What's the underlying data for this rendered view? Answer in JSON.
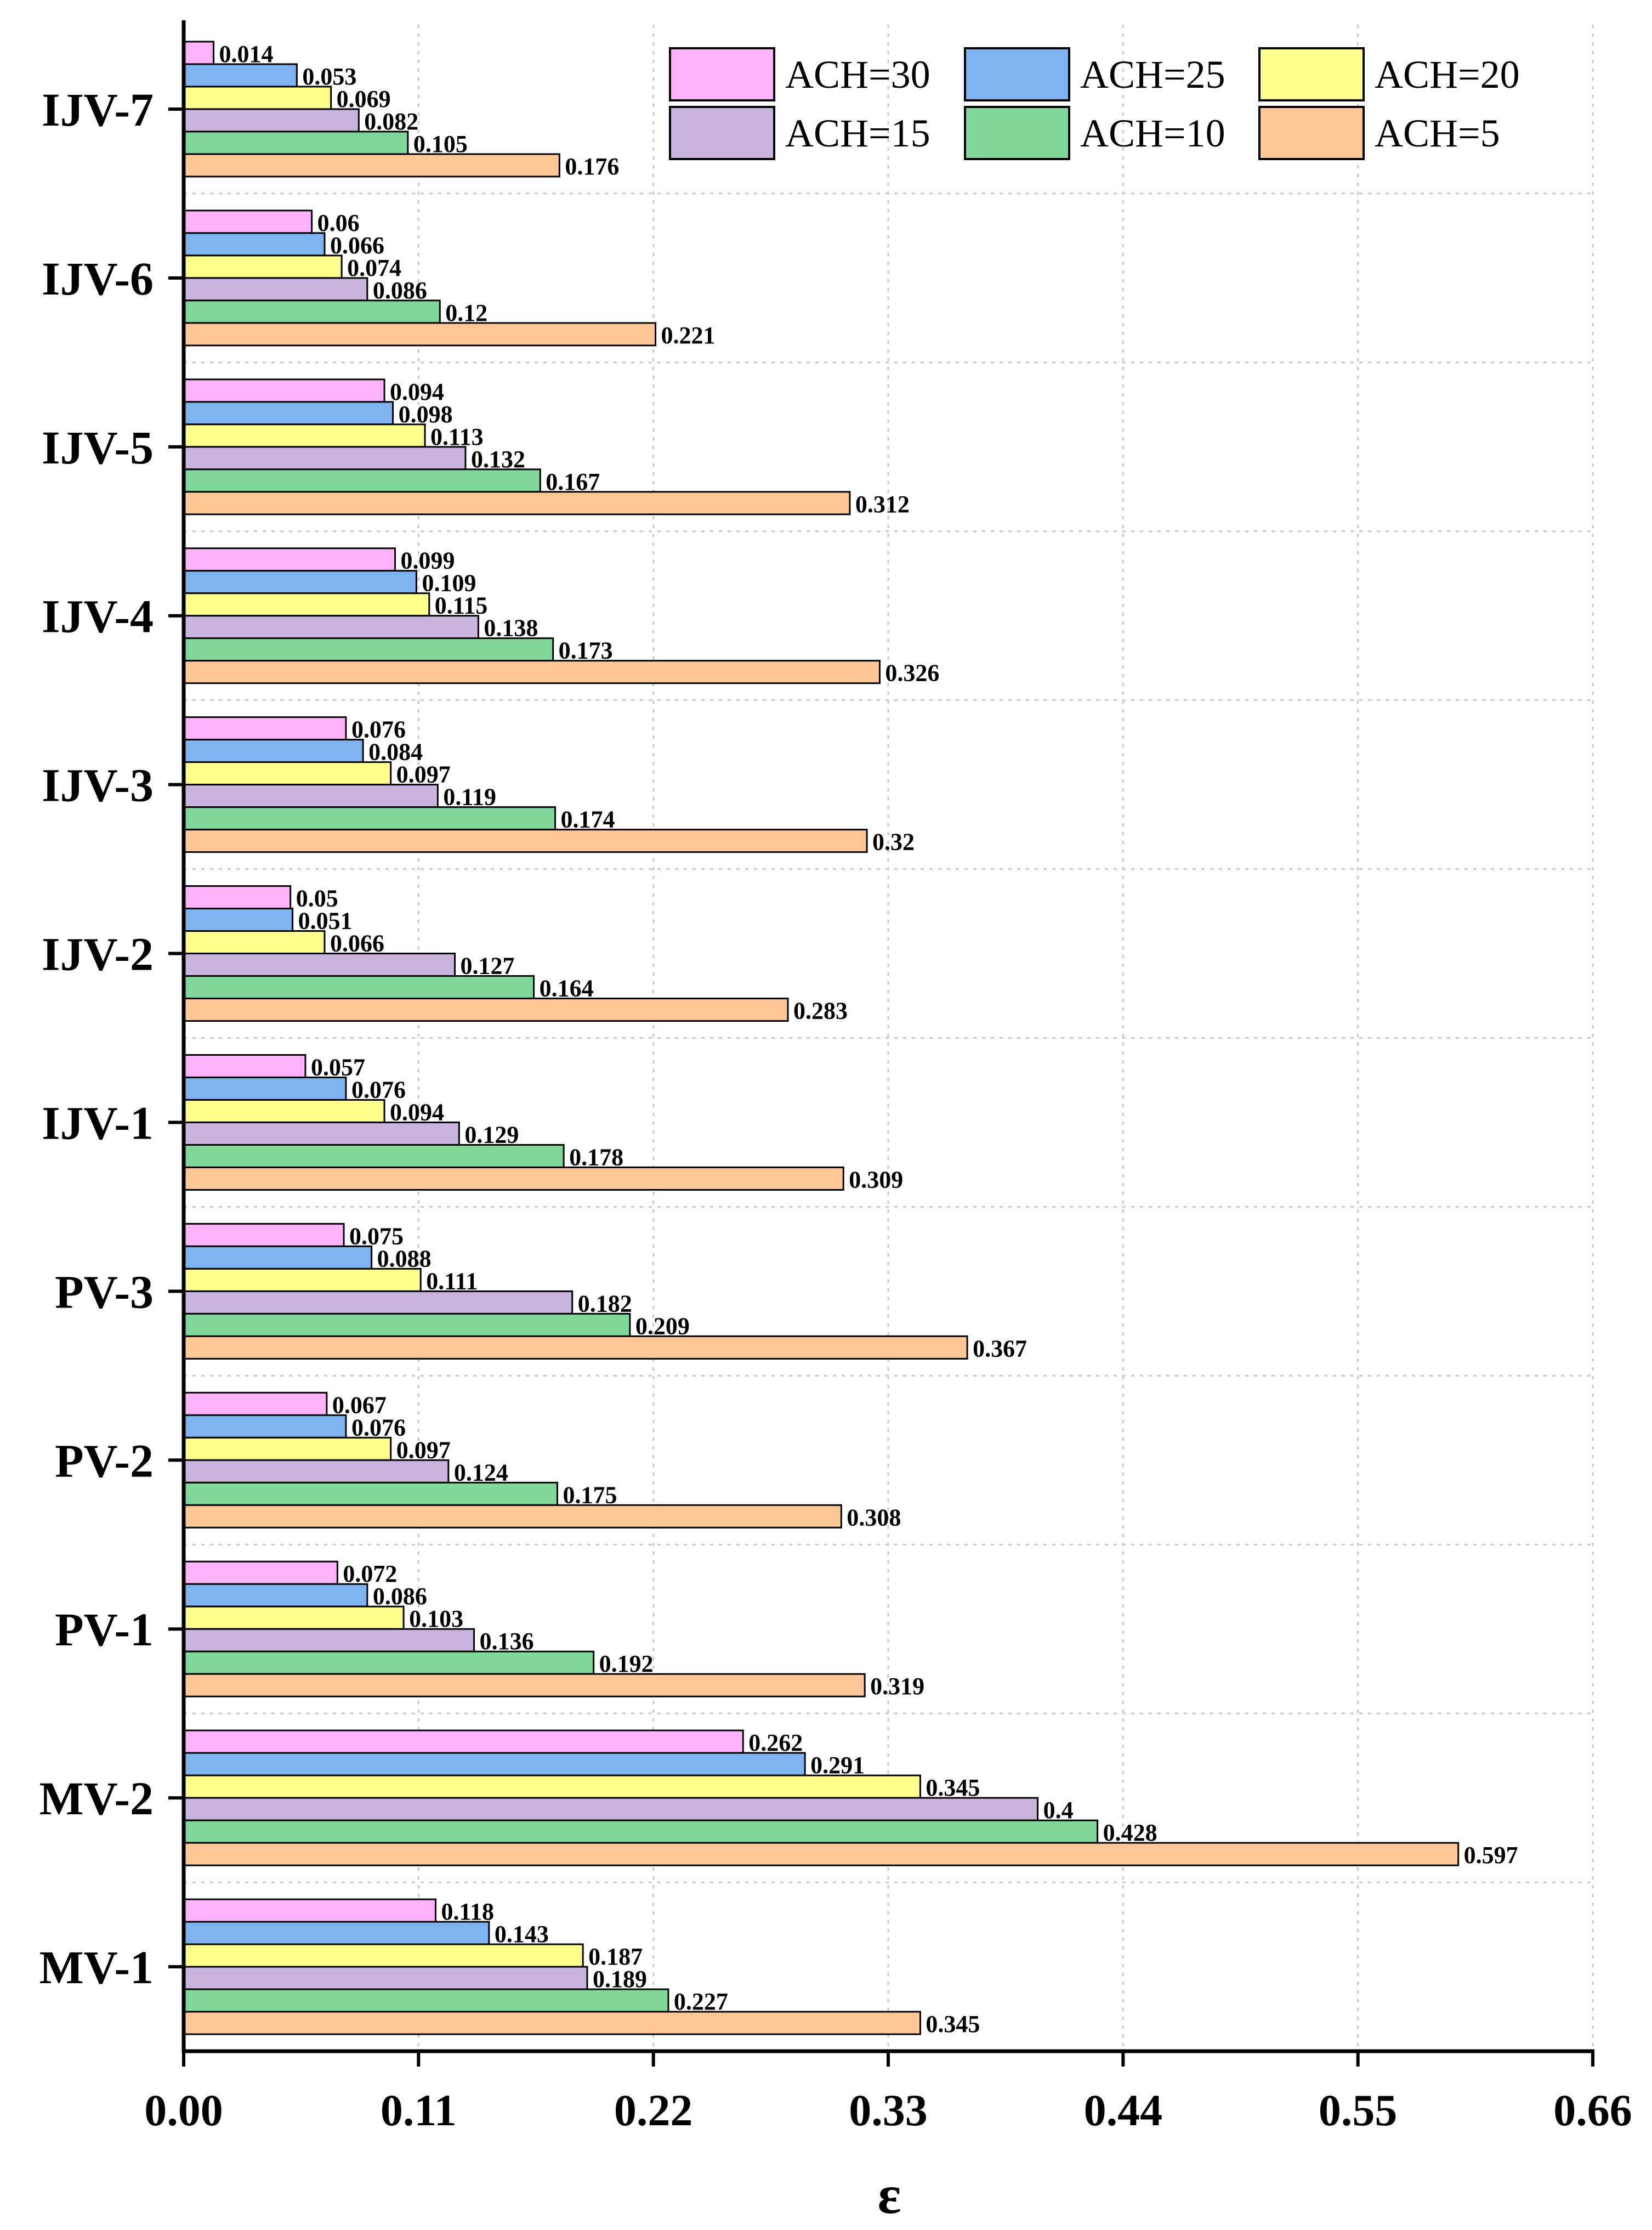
{
  "chart_data": {
    "type": "bar",
    "orientation": "horizontal",
    "categories": [
      "MV-1",
      "MV-2",
      "PV-1",
      "PV-2",
      "PV-3",
      "IJV-1",
      "IJV-2",
      "IJV-3",
      "IJV-4",
      "IJV-5",
      "IJV-6",
      "IJV-7"
    ],
    "series": [
      {
        "name": "ACH=30",
        "color": "#FFB3FF",
        "values": [
          0.118,
          0.262,
          0.072,
          0.067,
          0.075,
          0.057,
          0.05,
          0.076,
          0.099,
          0.094,
          0.06,
          0.014
        ]
      },
      {
        "name": "ACH=25",
        "color": "#7FB2F0",
        "values": [
          0.143,
          0.291,
          0.086,
          0.076,
          0.088,
          0.076,
          0.051,
          0.084,
          0.109,
          0.098,
          0.066,
          0.053
        ]
      },
      {
        "name": "ACH=20",
        "color": "#FFFF8C",
        "values": [
          0.187,
          0.345,
          0.103,
          0.097,
          0.111,
          0.094,
          0.066,
          0.097,
          0.115,
          0.113,
          0.074,
          0.069
        ]
      },
      {
        "name": "ACH=15",
        "color": "#C8B4DC",
        "values": [
          0.189,
          0.4,
          0.136,
          0.124,
          0.182,
          0.129,
          0.127,
          0.119,
          0.138,
          0.132,
          0.086,
          0.082
        ]
      },
      {
        "name": "ACH=10",
        "color": "#7FD89A",
        "values": [
          0.227,
          0.428,
          0.192,
          0.175,
          0.209,
          0.178,
          0.164,
          0.174,
          0.173,
          0.167,
          0.12,
          0.105
        ]
      },
      {
        "name": "ACH=5",
        "color": "#FFC896",
        "values": [
          0.345,
          0.597,
          0.319,
          0.308,
          0.367,
          0.309,
          0.283,
          0.32,
          0.326,
          0.312,
          0.221,
          0.176
        ]
      }
    ],
    "data_labels": [
      [
        "0.118",
        "0.262",
        "0.072",
        "0.067",
        "0.075",
        "0.057",
        "0.05",
        "0.076",
        "0.099",
        "0.094",
        "0.06",
        "0.014"
      ],
      [
        "0.143",
        "0.291",
        "0.086",
        "0.076",
        "0.088",
        "0.076",
        "0.051",
        "0.084",
        "0.109",
        "0.098",
        "0.066",
        "0.053"
      ],
      [
        "0.187",
        "0.345",
        "0.103",
        "0.097",
        "0.111",
        "0.094",
        "0.066",
        "0.097",
        "0.115",
        "0.113",
        "0.074",
        "0.069"
      ],
      [
        "0.189",
        "0.4",
        "0.136",
        "0.124",
        "0.182",
        "0.129",
        "0.127",
        "0.119",
        "0.138",
        "0.132",
        "0.086",
        "0.082"
      ],
      [
        "0.227",
        "0.428",
        "0.192",
        "0.175",
        "0.209",
        "0.178",
        "0.164",
        "0.174",
        "0.173",
        "0.167",
        "0.12",
        "0.105"
      ],
      [
        "0.345",
        "0.597",
        "0.319",
        "0.308",
        "0.367",
        "0.309",
        "0.283",
        "0.32",
        "0.326",
        "0.312",
        "0.221",
        "0.176"
      ]
    ],
    "xlabel": "ε",
    "ylabel": "",
    "xlim": [
      0,
      0.66
    ],
    "xticks": [
      "0.00",
      "0.11",
      "0.22",
      "0.33",
      "0.44",
      "0.55",
      "0.66"
    ],
    "grid": true,
    "legend_position": "top-right",
    "legend_order": [
      "ACH=30",
      "ACH=25",
      "ACH=20",
      "ACH=15",
      "ACH=10",
      "ACH=5"
    ]
  }
}
